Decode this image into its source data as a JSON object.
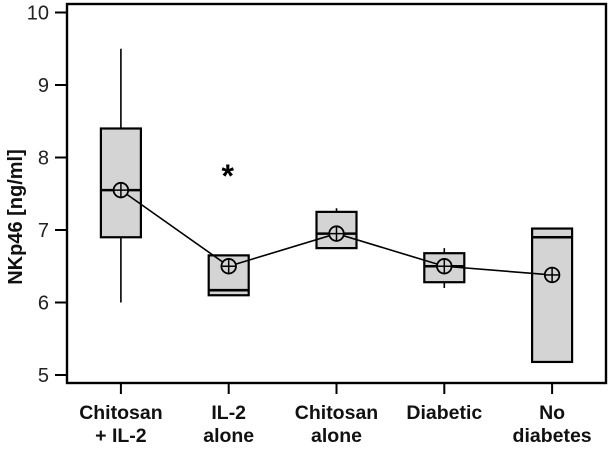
{
  "chart_data": {
    "type": "box",
    "title": "",
    "xlabel": "",
    "ylabel": "NKp46 [ng/ml]",
    "ylim": [
      5,
      10
    ],
    "yticks": [
      5,
      6,
      7,
      8,
      9,
      10
    ],
    "legend": null,
    "grid": false,
    "categories": [
      "Chitosan + IL-2",
      "IL-2 alone",
      "Chitosan alone",
      "Diabetic",
      "No diabetes"
    ],
    "category_label_lines": [
      [
        "Chitosan",
        "+ IL-2"
      ],
      [
        "IL-2",
        "alone"
      ],
      [
        "Chitosan",
        "alone"
      ],
      [
        "Diabetic"
      ],
      [
        "No",
        "diabetes"
      ]
    ],
    "boxes": [
      {
        "label": "Chitosan + IL-2",
        "whisker_low": 6.0,
        "q1": 6.9,
        "median": 7.55,
        "q3": 8.4,
        "whisker_high": 9.5,
        "mean": 7.55
      },
      {
        "label": "IL-2 alone",
        "whisker_low": 6.1,
        "q1": 6.1,
        "median": 6.17,
        "q3": 6.65,
        "whisker_high": 6.65,
        "mean": 6.5
      },
      {
        "label": "Chitosan alone",
        "whisker_low": 6.75,
        "q1": 6.75,
        "median": 6.95,
        "q3": 7.25,
        "whisker_high": 7.3,
        "mean": 6.95
      },
      {
        "label": "Diabetic",
        "whisker_low": 6.2,
        "q1": 6.28,
        "median": 6.5,
        "q3": 6.68,
        "whisker_high": 6.75,
        "mean": 6.5
      },
      {
        "label": "No diabetes",
        "whisker_low": 5.18,
        "q1": 5.18,
        "median": 6.9,
        "q3": 7.02,
        "whisker_high": 7.02,
        "mean": 6.38
      }
    ],
    "mean_line_connects_groups": true,
    "mean_marker": "circle-plus",
    "annotations": [
      {
        "text": "*",
        "category_index": 1,
        "y": 7.9,
        "meaning": "significance-marker"
      }
    ],
    "colors": {
      "box_fill": "#d4d4d4",
      "stroke": "#000000",
      "tick_label": "#222222",
      "background": "#ffffff"
    }
  }
}
